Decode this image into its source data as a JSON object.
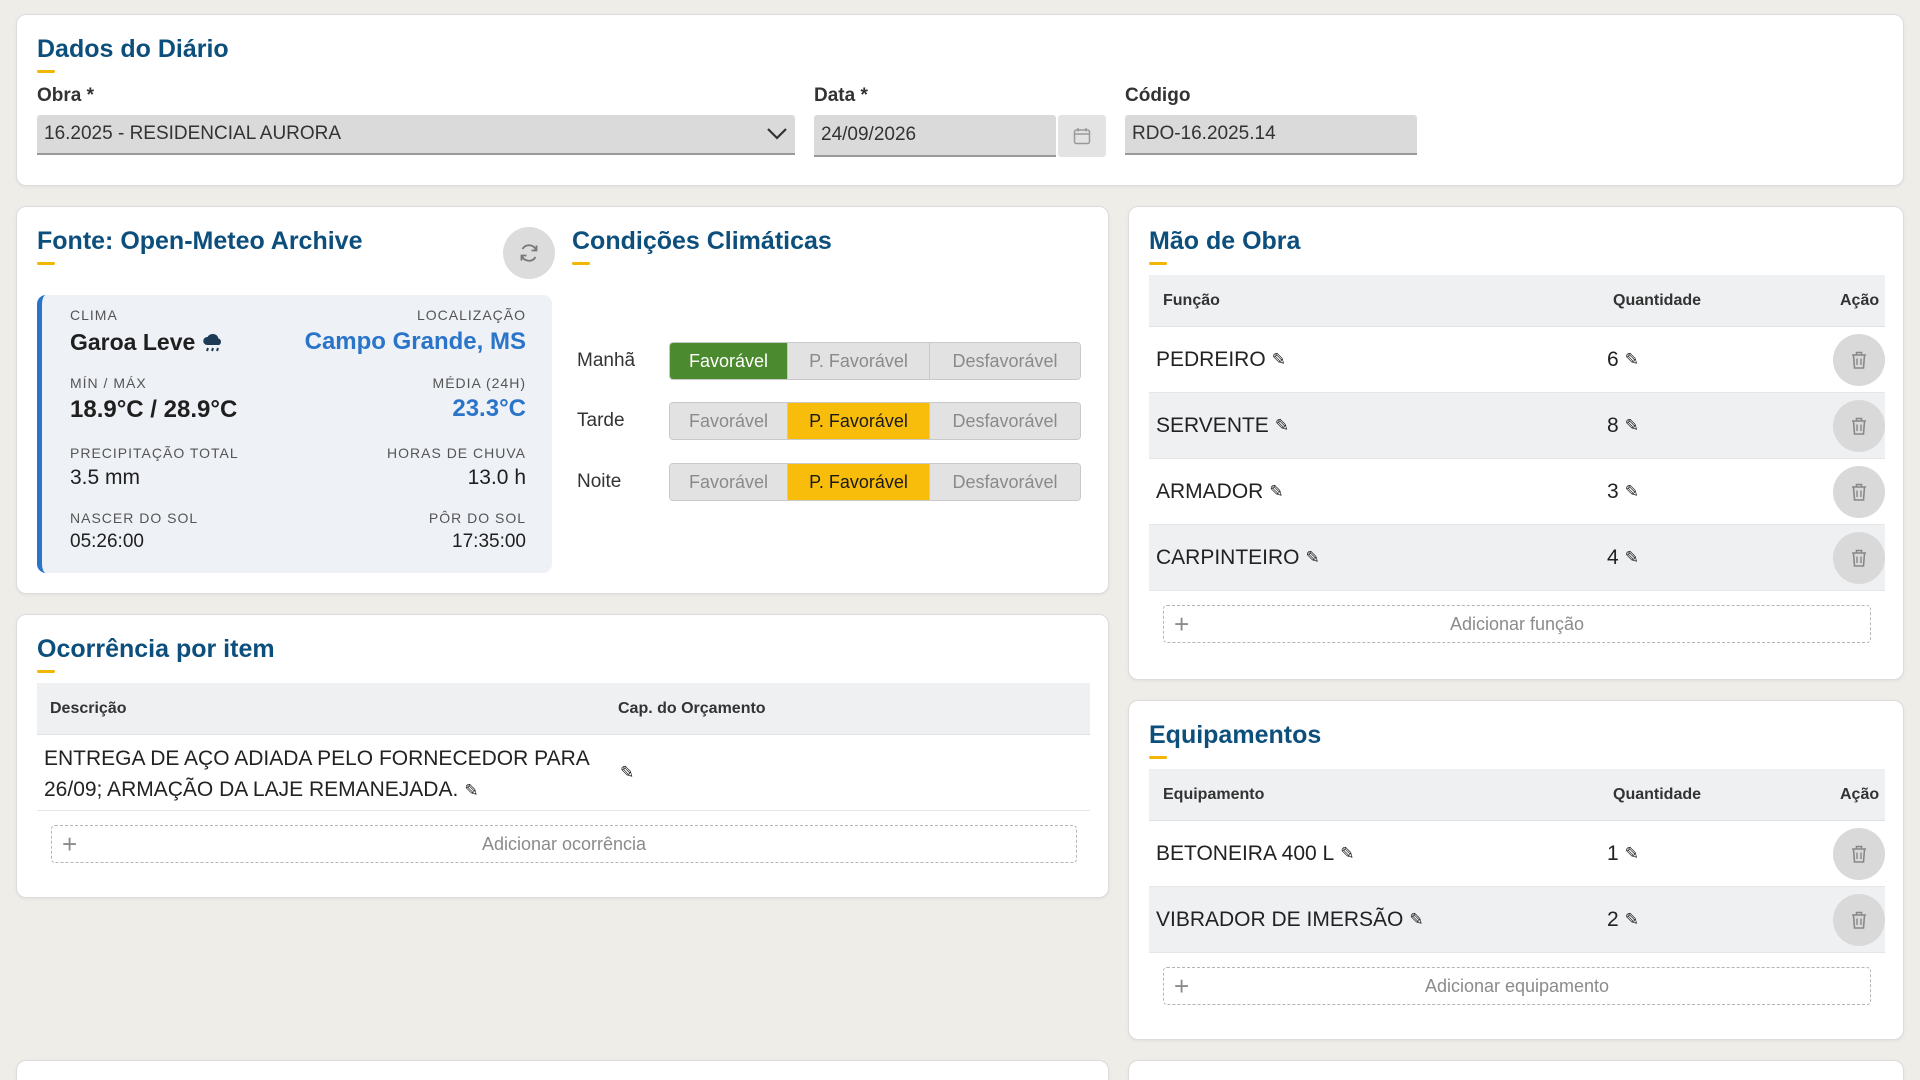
{
  "diario": {
    "title": "Dados do Diário",
    "obra_label": "Obra *",
    "obra_value": "16.2025 - RESIDENCIAL AURORA",
    "data_label": "Data *",
    "data_value": "24/09/2026",
    "codigo_label": "Código",
    "codigo_value": "RDO-16.2025.14"
  },
  "weather": {
    "source_title": "Fonte: Open-Meteo Archive",
    "clima_label": "CLIMA",
    "clima_value": "Garoa Leve",
    "clima_icon": "rain-cloud-icon",
    "localizacao_label": "LOCALIZAÇÃO",
    "localizacao_value": "Campo Grande, MS",
    "minmax_label": "MÍN / MÁX",
    "minmax_value": "18.9°C / 28.9°C",
    "media_label": "MÉDIA (24H)",
    "media_value": "23.3°C",
    "precip_label": "PRECIPITAÇÃO TOTAL",
    "precip_value": "3.5 mm",
    "horas_label": "HORAS DE CHUVA",
    "horas_value": "13.0 h",
    "nascer_label": "NASCER DO SOL",
    "nascer_value": "05:26:00",
    "por_label": "PÔR DO SOL",
    "por_value": "17:35:00",
    "accent_color": "#2a74c9"
  },
  "condicoes": {
    "title": "Condições Climáticas",
    "options": [
      "Favorável",
      "P. Favorável",
      "Desfavorável"
    ],
    "rows": [
      {
        "label": "Manhã",
        "selected": "Favorável"
      },
      {
        "label": "Tarde",
        "selected": "P. Favorável"
      },
      {
        "label": "Noite",
        "selected": "P. Favorável"
      }
    ],
    "colors": {
      "favoravel": "#4b8a2e",
      "p_favoravel": "#f8bd0a"
    }
  },
  "ocorrencia": {
    "title": "Ocorrência por item",
    "headers": {
      "descricao": "Descrição",
      "cap": "Cap. do Orçamento"
    },
    "rows": [
      {
        "line1": "ENTREGA DE AÇO ADIADA PELO FORNECEDOR PARA",
        "line2": "26/09; ARMAÇÃO DA LAJE REMANEJADA.",
        "cap": ""
      }
    ],
    "add_label": "Adicionar ocorrência"
  },
  "mao_de_obra": {
    "title": "Mão de Obra",
    "headers": {
      "funcao": "Função",
      "quantidade": "Quantidade",
      "acao": "Ação"
    },
    "rows": [
      {
        "funcao": "PEDREIRO",
        "quantidade": "6"
      },
      {
        "funcao": "SERVENTE",
        "quantidade": "8"
      },
      {
        "funcao": "ARMADOR",
        "quantidade": "3"
      },
      {
        "funcao": "CARPINTEIRO",
        "quantidade": "4"
      }
    ],
    "add_label": "Adicionar função"
  },
  "equipamentos": {
    "title": "Equipamentos",
    "headers": {
      "equipamento": "Equipamento",
      "quantidade": "Quantidade",
      "acao": "Ação"
    },
    "rows": [
      {
        "equipamento": "BETONEIRA 400 L",
        "quantidade": "1"
      },
      {
        "equipamento": "VIBRADOR DE IMERSÃO",
        "quantidade": "2"
      }
    ],
    "add_label": "Adicionar equipamento"
  },
  "theme": {
    "title_color": "#0d4f7c",
    "underline_color": "#f2b705",
    "background": "#efede8"
  }
}
